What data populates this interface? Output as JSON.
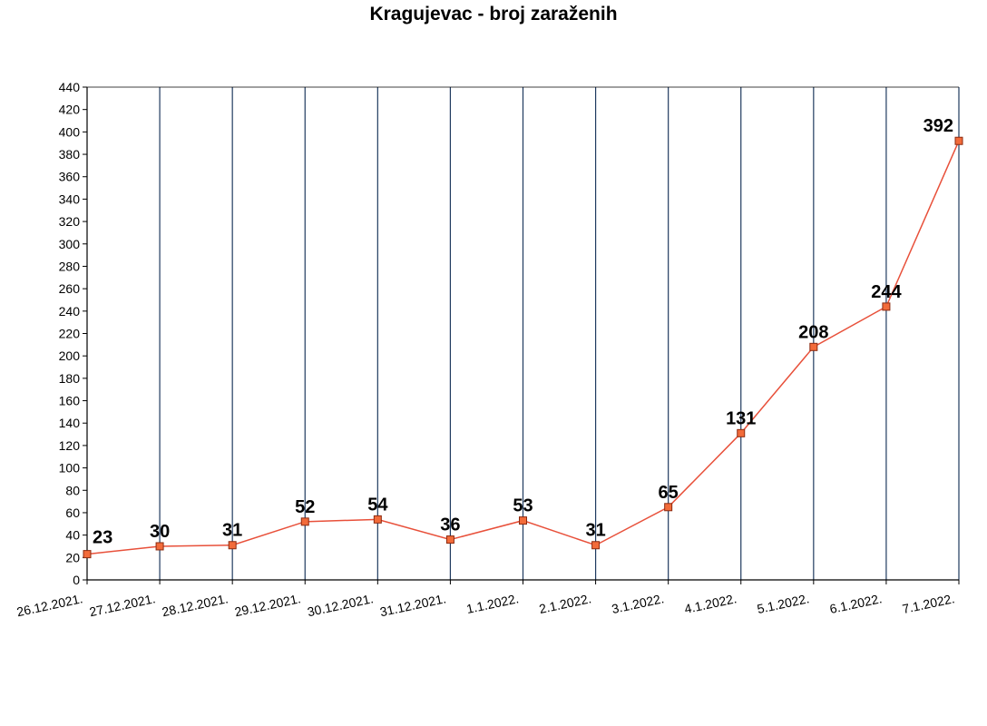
{
  "chart_data": {
    "type": "line",
    "title": "Kragujevac - broj zaraženih",
    "xlabel": "",
    "ylabel": "",
    "categories": [
      "26.12.2021.",
      "27.12.2021.",
      "28.12.2021.",
      "29.12.2021.",
      "30.12.2021.",
      "31.12.2021.",
      "1.1.2022.",
      "2.1.2022.",
      "3.1.2022.",
      "4.1.2022.",
      "5.1.2022.",
      "6.1.2022.",
      "7.1.2022."
    ],
    "series": [
      {
        "values": [
          23,
          30,
          31,
          52,
          54,
          36,
          53,
          31,
          65,
          131,
          208,
          244,
          392
        ]
      }
    ],
    "ylim": [
      0,
      440
    ],
    "ytick_step": 20,
    "grid": "vertical",
    "legend": "none",
    "colors": {
      "line": "#e8503a",
      "marker_fill": "#f26b3a",
      "marker_stroke": "#8b2a10",
      "gridline": "#1f3a5f",
      "axis": "#000000"
    }
  }
}
